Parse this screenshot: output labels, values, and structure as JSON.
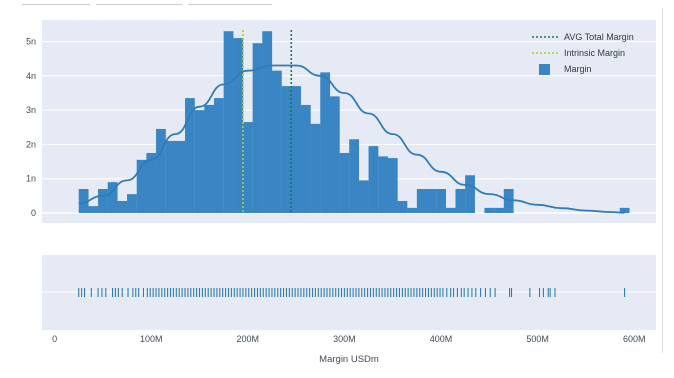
{
  "chart_data": {
    "type": "bar",
    "title": "",
    "xlabel": "Margin USDm",
    "ylabel": "",
    "xlim": [
      -10000000,
      615000000
    ],
    "ylim": [
      -0.35,
      5.5
    ],
    "grid": true,
    "legend_position": "top-right",
    "x_ticks": [
      0,
      100000000,
      200000000,
      300000000,
      400000000,
      500000000,
      600000000
    ],
    "x_tick_labels": [
      "0",
      "100M",
      "200M",
      "300M",
      "400M",
      "500M",
      "600M"
    ],
    "y_ticks": [
      0,
      1,
      2,
      3,
      4,
      5
    ],
    "y_tick_labels": [
      "0",
      "1n",
      "2n",
      "3n",
      "4n",
      "5n"
    ],
    "bin_width": 10000000,
    "histogram": {
      "name": "Margin",
      "color": "#3a86c4",
      "bin_starts": [
        25000000,
        35000000,
        45000000,
        55000000,
        65000000,
        75000000,
        85000000,
        95000000,
        105000000,
        115000000,
        125000000,
        135000000,
        145000000,
        155000000,
        165000000,
        175000000,
        185000000,
        195000000,
        205000000,
        215000000,
        225000000,
        235000000,
        245000000,
        255000000,
        265000000,
        275000000,
        285000000,
        295000000,
        305000000,
        315000000,
        325000000,
        335000000,
        345000000,
        355000000,
        365000000,
        375000000,
        385000000,
        395000000,
        405000000,
        415000000,
        425000000,
        435000000,
        445000000,
        455000000,
        465000000,
        475000000,
        485000000,
        495000000,
        505000000,
        515000000,
        525000000,
        535000000,
        545000000,
        555000000,
        565000000,
        575000000,
        585000000
      ],
      "values": [
        0.7,
        0.2,
        0.7,
        0.9,
        0.35,
        0.55,
        1.55,
        1.75,
        2.45,
        2.1,
        2.1,
        3.35,
        3.0,
        3.15,
        3.35,
        5.3,
        5.1,
        2.65,
        4.95,
        5.3,
        4.15,
        3.7,
        3.7,
        3.15,
        2.6,
        4.1,
        3.4,
        1.75,
        2.15,
        0.95,
        1.95,
        1.65,
        1.6,
        0.35,
        0.15,
        0.7,
        0.7,
        0.7,
        0.15,
        0.7,
        1.1,
        0,
        0.15,
        0.15,
        0.7,
        0,
        0,
        0,
        0,
        0,
        0,
        0,
        0,
        0,
        0,
        0,
        0.15
      ]
    },
    "kde_curve": {
      "color": "#2f7cb8",
      "x": [
        25000000,
        50000000,
        75000000,
        100000000,
        125000000,
        150000000,
        175000000,
        200000000,
        225000000,
        250000000,
        275000000,
        300000000,
        325000000,
        350000000,
        375000000,
        400000000,
        425000000,
        450000000,
        475000000,
        500000000,
        525000000,
        550000000,
        575000000,
        590000000
      ],
      "y": [
        0.28,
        0.5,
        0.95,
        1.55,
        2.3,
        3.1,
        3.75,
        4.15,
        4.3,
        4.3,
        4.0,
        3.5,
        2.9,
        2.3,
        1.7,
        1.2,
        0.82,
        0.55,
        0.37,
        0.24,
        0.14,
        0.07,
        0.03,
        0.01
      ]
    },
    "reference_lines": [
      {
        "name": "AVG Total Margin",
        "x": 245000000,
        "color": "#1a7a52",
        "dash": "dot"
      },
      {
        "name": "Intrinsic Margin",
        "x": 195000000,
        "color": "#a8cf2e",
        "dash": "dot"
      }
    ],
    "legend_entries": [
      "AVG Total Margin",
      "Intrinsic Margin",
      "Margin"
    ],
    "rug": {
      "color": "#2f7cb8",
      "values": [
        25000000,
        28000000,
        31000000,
        38000000,
        45000000,
        49000000,
        53000000,
        60000000,
        63000000,
        66000000,
        70000000,
        76000000,
        81000000,
        84000000,
        87000000,
        92000000,
        96000000,
        99000000,
        102000000,
        105000000,
        108000000,
        111000000,
        114000000,
        117000000,
        120000000,
        123000000,
        126000000,
        129000000,
        132000000,
        135000000,
        138000000,
        141000000,
        144000000,
        147000000,
        150000000,
        153000000,
        156000000,
        159000000,
        162000000,
        165000000,
        168000000,
        171000000,
        174000000,
        177000000,
        180000000,
        183000000,
        186000000,
        189000000,
        192000000,
        195000000,
        198000000,
        201000000,
        204000000,
        207000000,
        210000000,
        213000000,
        216000000,
        219000000,
        222000000,
        225000000,
        228000000,
        231000000,
        234000000,
        237000000,
        240000000,
        243000000,
        246000000,
        249000000,
        252000000,
        255000000,
        258000000,
        261000000,
        264000000,
        267000000,
        270000000,
        273000000,
        276000000,
        279000000,
        282000000,
        285000000,
        288000000,
        291000000,
        294000000,
        297000000,
        300000000,
        303000000,
        306000000,
        309000000,
        312000000,
        315000000,
        318000000,
        321000000,
        324000000,
        327000000,
        330000000,
        333000000,
        336000000,
        339000000,
        342000000,
        345000000,
        348000000,
        351000000,
        354000000,
        357000000,
        360000000,
        363000000,
        366000000,
        369000000,
        372000000,
        375000000,
        378000000,
        381000000,
        384000000,
        387000000,
        390000000,
        393000000,
        396000000,
        399000000,
        402000000,
        406000000,
        410000000,
        413000000,
        417000000,
        421000000,
        424000000,
        428000000,
        432000000,
        436000000,
        441000000,
        446000000,
        451000000,
        456000000,
        471000000,
        473000000,
        492000000,
        502000000,
        506000000,
        511000000,
        513000000,
        518000000,
        590000000
      ]
    }
  }
}
